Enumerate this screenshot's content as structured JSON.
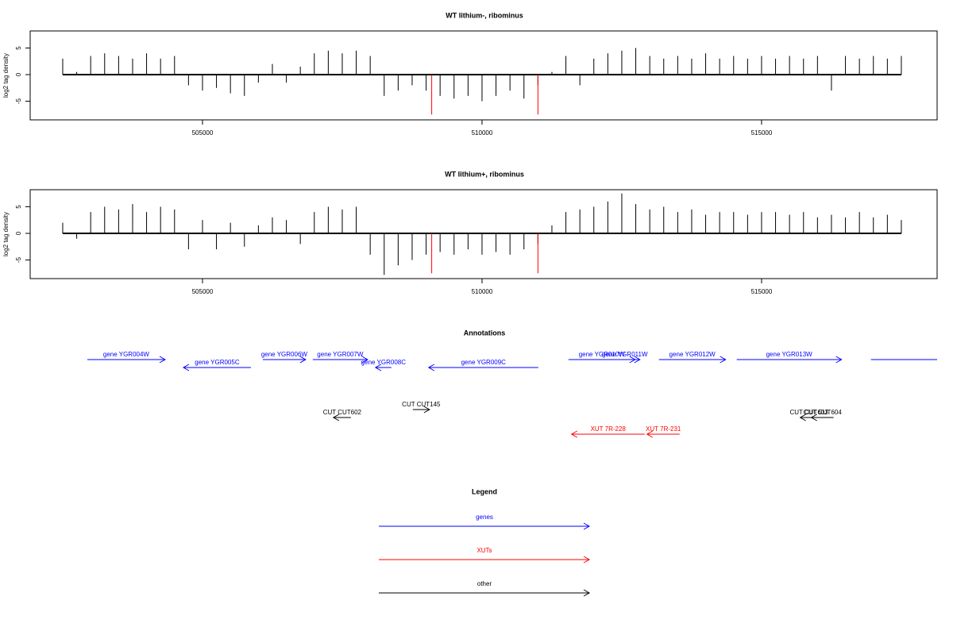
{
  "chart_data": [
    {
      "type": "bar",
      "title": "WT lithium-, ribominus",
      "ylabel": "log2 tag density",
      "xlim": [
        501918,
        518140
      ],
      "ylim": [
        -8.5,
        8.2
      ],
      "xticks": [
        505000,
        510000,
        515000
      ],
      "yticks": [
        -5,
        0,
        5
      ],
      "series": [
        {
          "color": "#000000",
          "x": [
            502500,
            502750,
            503000,
            503250,
            503500,
            503750,
            504000,
            504250,
            504500,
            504750,
            505000,
            505250,
            505500,
            505750,
            506000,
            506250,
            506500,
            506750,
            507000,
            507250,
            507500,
            507750,
            508000,
            508250,
            508500,
            508750,
            509000,
            509250,
            509500,
            509750,
            510000,
            510250,
            510500,
            510750,
            511000,
            511250,
            511500,
            511750,
            512000,
            512250,
            512500,
            512750,
            513000,
            513250,
            513500,
            513750,
            514000,
            514250,
            514500,
            514750,
            515000,
            515250,
            515500,
            515750,
            516000,
            516250,
            516500,
            516750,
            517000,
            517250,
            517500
          ],
          "values": [
            3,
            0.5,
            3.5,
            4,
            3.5,
            3,
            4,
            3,
            3.5,
            -2,
            -3,
            -2.5,
            -3.5,
            -4,
            -1.5,
            2,
            -1.5,
            1.5,
            4,
            4.5,
            4,
            4.5,
            3.5,
            -4,
            -3,
            -2,
            -3,
            -4,
            -4.5,
            -4,
            -5,
            -4,
            -3,
            -4.5,
            -2,
            0.5,
            3.5,
            -2,
            3,
            4,
            4.5,
            5,
            3.5,
            3,
            3.5,
            3,
            4,
            3,
            3.5,
            3,
            3.5,
            3,
            3.5,
            3,
            3.5,
            -3,
            3.5,
            3,
            3.5,
            3,
            3.5
          ]
        },
        {
          "color": "#ff0000",
          "x": [
            509100,
            511000
          ],
          "values": [
            -7.5,
            -7.5
          ]
        }
      ]
    },
    {
      "type": "bar",
      "title": "WT lithium+, ribominus",
      "ylabel": "log2 tag density",
      "xlim": [
        501918,
        518140
      ],
      "ylim": [
        -8.5,
        8.2
      ],
      "xticks": [
        505000,
        510000,
        515000
      ],
      "yticks": [
        -5,
        0,
        5
      ],
      "series": [
        {
          "color": "#000000",
          "x": [
            502500,
            502750,
            503000,
            503250,
            503500,
            503750,
            504000,
            504250,
            504500,
            504750,
            505000,
            505250,
            505500,
            505750,
            506000,
            506250,
            506500,
            506750,
            507000,
            507250,
            507500,
            507750,
            508000,
            508250,
            508500,
            508750,
            509000,
            509250,
            509500,
            509750,
            510000,
            510250,
            510500,
            510750,
            511000,
            511250,
            511500,
            511750,
            512000,
            512250,
            512500,
            512750,
            513000,
            513250,
            513500,
            513750,
            514000,
            514250,
            514500,
            514750,
            515000,
            515250,
            515500,
            515750,
            516000,
            516250,
            516500,
            516750,
            517000,
            517250,
            517500
          ],
          "values": [
            2,
            -1,
            4,
            5,
            4.5,
            5.5,
            4,
            5,
            4.5,
            -3,
            2.5,
            -3,
            2,
            -2.5,
            1.5,
            3,
            2.5,
            -2,
            4,
            5,
            4.5,
            5,
            -4,
            -7.8,
            -6,
            -5,
            -4,
            -3.5,
            -4,
            -3,
            -4,
            -3.5,
            -4,
            -3,
            -2,
            1.5,
            4,
            4.5,
            5,
            6,
            7.5,
            5.5,
            4.5,
            5,
            4,
            4.5,
            3.5,
            4,
            4,
            3.5,
            4,
            4,
            3.5,
            4,
            3,
            3.5,
            3,
            4,
            3,
            3.5,
            2.5
          ]
        },
        {
          "color": "#ff0000",
          "x": [
            509100,
            511000
          ],
          "values": [
            -7.5,
            -7.5
          ]
        }
      ]
    }
  ],
  "annotations": {
    "title": "Annotations",
    "groups": [
      {
        "name": "genes",
        "color": "#0000ff",
        "features": [
          {
            "label": "gene YGR004W",
            "start": 502940,
            "end": 504332,
            "strand": "+"
          },
          {
            "label": "gene YGR005C",
            "start": 504659,
            "end": 505866,
            "strand": "-"
          },
          {
            "label": "gene YGR006W",
            "start": 506079,
            "end": 506845,
            "strand": "+"
          },
          {
            "label": "gene YGR007W",
            "start": 506973,
            "end": 507953,
            "strand": "+"
          },
          {
            "label": "gene YGR008C",
            "start": 508095,
            "end": 508379,
            "strand": "-"
          },
          {
            "label": "gene YGR009C",
            "start": 509046,
            "end": 511006,
            "strand": "-"
          },
          {
            "label": "gene YGR010W",
            "start": 511546,
            "end": 512738,
            "strand": "+"
          },
          {
            "label": "gene YGR011W",
            "start": 512284,
            "end": 512824,
            "strand": "+"
          },
          {
            "label": "gene YGR012W",
            "start": 513164,
            "end": 514357,
            "strand": "+"
          },
          {
            "label": "gene YGR013W",
            "start": 514556,
            "end": 516430,
            "strand": "+"
          },
          {
            "start": 516956,
            "end": 518140,
            "strand": "+"
          }
        ]
      },
      {
        "name": "XUTs",
        "color": "#ff0000",
        "features": [
          {
            "label": "XUT 7R-228",
            "start": 511602,
            "end": 512909,
            "strand": "-"
          },
          {
            "label": "XUT 7R-231",
            "start": 512951,
            "end": 513534,
            "strand": "-"
          }
        ]
      },
      {
        "name": "other",
        "color": "#000000",
        "features": [
          {
            "label": "CUT CUT602",
            "start": 507342,
            "end": 507655,
            "strand": "-"
          },
          {
            "label": "CUT CUT145",
            "start": 508762,
            "end": 509061,
            "strand": "+"
          },
          {
            "label": "CUT CUT603",
            "start": 515692,
            "end": 516004,
            "strand": "-"
          },
          {
            "label": "CUT CUT604",
            "start": 515891,
            "end": 516288,
            "strand": "-"
          }
        ]
      }
    ]
  },
  "legend": {
    "title": "Legend"
  }
}
